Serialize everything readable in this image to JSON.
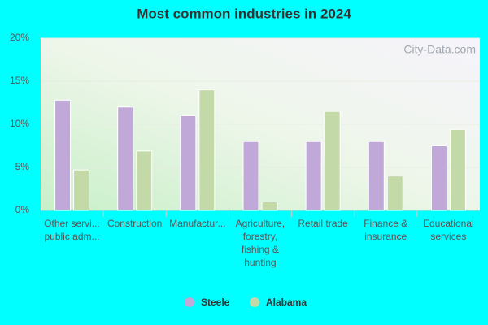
{
  "chart_data": {
    "type": "bar",
    "title": "Most common industries in 2024",
    "watermark": "City-Data.com",
    "categories": [
      "Other servi...\npublic adm...",
      "Construction",
      "Manufactur...",
      "Agriculture,\nforestry,\nfishing &\nhunting",
      "Retail trade",
      "Finance &\ninsurance",
      "Educational\nservices"
    ],
    "series": [
      {
        "name": "Steele",
        "color": "#c0a8d8",
        "values": [
          12.8,
          12.0,
          11.0,
          8.0,
          8.0,
          8.0,
          7.5
        ]
      },
      {
        "name": "Alabama",
        "color": "#c4d9a8",
        "values": [
          4.7,
          6.9,
          14.0,
          1.0,
          11.5,
          4.0,
          9.4
        ]
      }
    ],
    "ylim": [
      0,
      20
    ],
    "yticks": [
      {
        "value": 0,
        "label": "0%"
      },
      {
        "value": 5,
        "label": "5%"
      },
      {
        "value": 10,
        "label": "10%"
      },
      {
        "value": 15,
        "label": "15%"
      },
      {
        "value": 20,
        "label": "20%"
      }
    ],
    "grid": true
  }
}
